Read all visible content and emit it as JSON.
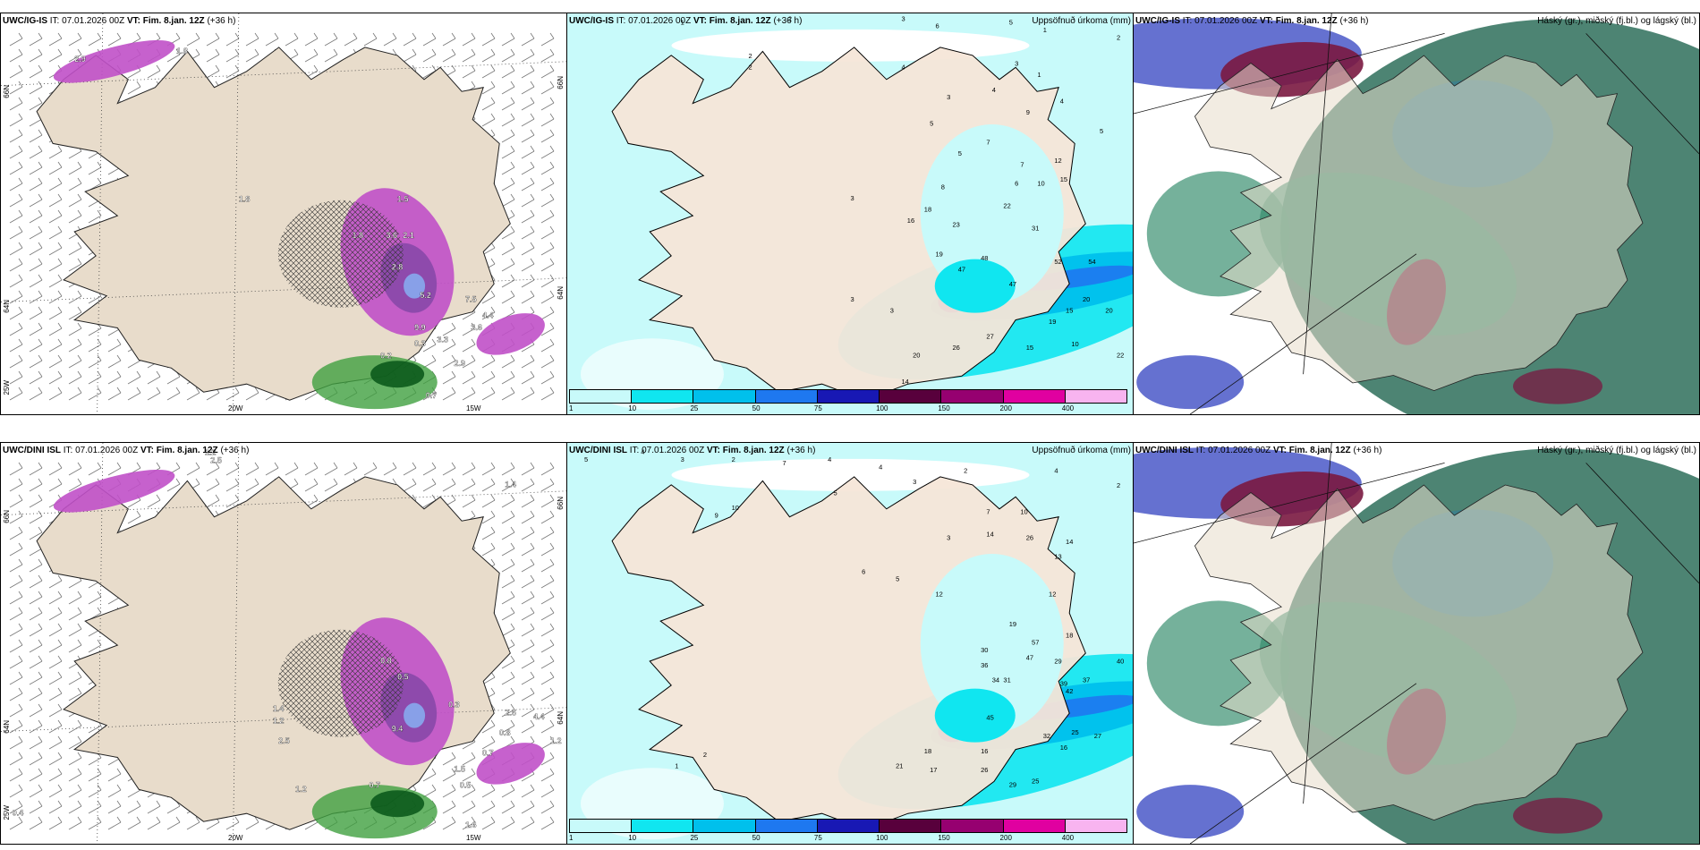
{
  "panels": {
    "p1": {
      "model": "UWC/IG-IS",
      "it": "IT: 07.01.2026 00Z",
      "vt_label": "VT:",
      "vt": "Fim. 8.jan. 12Z",
      "lead": "(+36 h)"
    },
    "p2": {
      "model": "UWC/IG-IS",
      "it": "IT: 07.01.2026 00Z",
      "vt_label": "VT:",
      "vt": "Fim. 8.jan. 12Z",
      "lead": "(+36 h)",
      "title_right": "Uppsöfnuð úrkoma (mm)"
    },
    "p3": {
      "model": "UWC/IG-IS",
      "it": "IT: 07.01.2026 00Z",
      "vt_label": "VT:",
      "vt": "Fim. 8.jan. 12Z",
      "lead": "(+36 h)",
      "title_right": "Háský (gr.), miðský (fj.bl.) og lágský (bl.)"
    },
    "p4": {
      "model": "UWC/DINI ISL",
      "it": "IT: 07.01.2026 00Z",
      "vt_label": "VT:",
      "vt": "Fim. 8.jan. 12Z",
      "lead": "(+36 h)"
    },
    "p5": {
      "model": "UWC/DINI ISL",
      "it": "IT: 07.01.2026 00Z",
      "vt_label": "VT:",
      "vt": "Fim. 8.jan. 12Z",
      "lead": "(+36 h)",
      "title_right": "Uppsöfnuð úrkoma (mm)"
    },
    "p6": {
      "model": "UWC/DINI ISL",
      "it": "IT: 07.01.2026 00Z",
      "vt_label": "VT:",
      "vt": "Fim. 8.jan. 12Z",
      "lead": "(+36 h)",
      "title_right": "Háský (gr.), miðský (fj.bl.) og lágský (bl.)"
    }
  },
  "coords": {
    "lat66": "66N",
    "lat64": "64N",
    "lon25": "25W",
    "lon20": "20W",
    "lon15": "15W"
  },
  "colorbar": {
    "labels": [
      "1",
      "10",
      "25",
      "50",
      "75",
      "100",
      "150",
      "200",
      "400"
    ],
    "colors": [
      "#c8fafa",
      "#10e6f0",
      "#00c0ec",
      "#1e78f0",
      "#1818b4",
      "#58003c",
      "#960070",
      "#e000a0",
      "#f8b4f0"
    ]
  },
  "precip_values_p2": [
    [
      "1",
      0.2,
      0.03
    ],
    [
      "2",
      0.39,
      0.02
    ],
    [
      "3",
      0.59,
      0.02
    ],
    [
      "6",
      0.65,
      0.04
    ],
    [
      "5",
      0.78,
      0.03
    ],
    [
      "1",
      0.84,
      0.05
    ],
    [
      "2",
      0.97,
      0.07
    ],
    [
      "2",
      0.32,
      0.12
    ],
    [
      "4",
      0.59,
      0.15
    ],
    [
      "4",
      0.75,
      0.21
    ],
    [
      "2",
      0.32,
      0.15
    ],
    [
      "5",
      0.64,
      0.3
    ],
    [
      "3",
      0.79,
      0.14
    ],
    [
      "1",
      0.83,
      0.17
    ],
    [
      "3",
      0.67,
      0.23
    ],
    [
      "7",
      0.74,
      0.35
    ],
    [
      "5",
      0.69,
      0.38
    ],
    [
      "4",
      0.87,
      0.24
    ],
    [
      "9",
      0.81,
      0.27
    ],
    [
      "5",
      0.94,
      0.32
    ],
    [
      "7",
      0.8,
      0.41
    ],
    [
      "12",
      0.86,
      0.4
    ],
    [
      "8",
      0.66,
      0.47
    ],
    [
      "6",
      0.79,
      0.46
    ],
    [
      "10",
      0.83,
      0.46
    ],
    [
      "15",
      0.87,
      0.45
    ],
    [
      "3",
      0.5,
      0.5
    ],
    [
      "16",
      0.6,
      0.56
    ],
    [
      "18",
      0.63,
      0.53
    ],
    [
      "23",
      0.68,
      0.57
    ],
    [
      "22",
      0.77,
      0.52
    ],
    [
      "31",
      0.82,
      0.58
    ],
    [
      "19",
      0.65,
      0.65
    ],
    [
      "48",
      0.73,
      0.66
    ],
    [
      "52",
      0.86,
      0.67
    ],
    [
      "54",
      0.92,
      0.67
    ],
    [
      "47",
      0.78,
      0.73
    ],
    [
      "47",
      0.69,
      0.69
    ],
    [
      "20",
      0.91,
      0.77
    ],
    [
      "15",
      0.88,
      0.8
    ],
    [
      "19",
      0.85,
      0.83
    ],
    [
      "20",
      0.95,
      0.8
    ],
    [
      "27",
      0.74,
      0.87
    ],
    [
      "26",
      0.68,
      0.9
    ],
    [
      "15",
      0.81,
      0.9
    ],
    [
      "10",
      0.89,
      0.89
    ],
    [
      "22",
      0.97,
      0.92
    ],
    [
      "20",
      0.61,
      0.92
    ],
    [
      "3",
      0.57,
      0.8
    ],
    [
      "3",
      0.5,
      0.77
    ],
    [
      "14",
      0.59,
      0.99
    ]
  ],
  "precip_values_p5": [
    [
      "5",
      0.03,
      0.05
    ],
    [
      "4",
      0.13,
      0.03
    ],
    [
      "3",
      0.2,
      0.05
    ],
    [
      "2",
      0.29,
      0.05
    ],
    [
      "7",
      0.38,
      0.06
    ],
    [
      "4",
      0.46,
      0.05
    ],
    [
      "4",
      0.55,
      0.07
    ],
    [
      "3",
      0.61,
      0.11
    ],
    [
      "2",
      0.7,
      0.08
    ],
    [
      "4",
      0.86,
      0.08
    ],
    [
      "2",
      0.97,
      0.12
    ],
    [
      "9",
      0.26,
      0.2
    ],
    [
      "10",
      0.29,
      0.18
    ],
    [
      "5",
      0.47,
      0.14
    ],
    [
      "6",
      0.52,
      0.35
    ],
    [
      "5",
      0.58,
      0.37
    ],
    [
      "12",
      0.65,
      0.41
    ],
    [
      "3",
      0.67,
      0.26
    ],
    [
      "7",
      0.74,
      0.19
    ],
    [
      "10",
      0.8,
      0.19
    ],
    [
      "14",
      0.74,
      0.25
    ],
    [
      "26",
      0.81,
      0.26
    ],
    [
      "14",
      0.88,
      0.27
    ],
    [
      "13",
      0.86,
      0.31
    ],
    [
      "12",
      0.85,
      0.41
    ],
    [
      "18",
      0.88,
      0.52
    ],
    [
      "19",
      0.78,
      0.49
    ],
    [
      "57",
      0.82,
      0.54
    ],
    [
      "47",
      0.81,
      0.58
    ],
    [
      "29",
      0.86,
      0.59
    ],
    [
      "40",
      0.97,
      0.59
    ],
    [
      "30",
      0.73,
      0.56
    ],
    [
      "34",
      0.75,
      0.64
    ],
    [
      "31",
      0.77,
      0.64
    ],
    [
      "36",
      0.73,
      0.6
    ],
    [
      "39",
      0.87,
      0.65
    ],
    [
      "37",
      0.91,
      0.64
    ],
    [
      "42",
      0.88,
      0.67
    ],
    [
      "45",
      0.74,
      0.74
    ],
    [
      "32",
      0.84,
      0.79
    ],
    [
      "25",
      0.89,
      0.78
    ],
    [
      "27",
      0.93,
      0.79
    ],
    [
      "16",
      0.87,
      0.82
    ],
    [
      "16",
      0.73,
      0.83
    ],
    [
      "26",
      0.73,
      0.88
    ],
    [
      "25",
      0.82,
      0.91
    ],
    [
      "29",
      0.78,
      0.92
    ],
    [
      "18",
      0.63,
      0.83
    ],
    [
      "21",
      0.58,
      0.87
    ],
    [
      "17",
      0.64,
      0.88
    ],
    [
      "2",
      0.24,
      0.84
    ],
    [
      "1",
      0.19,
      0.87
    ]
  ],
  "wind_values_p1": [
    [
      "2.9",
      0.13,
      0.12
    ],
    [
      "1.8",
      0.31,
      0.1
    ],
    [
      "1.5",
      0.7,
      0.47
    ],
    [
      "3.6",
      0.68,
      0.56
    ],
    [
      "2.1",
      0.71,
      0.56
    ],
    [
      "1.8",
      0.62,
      0.56
    ],
    [
      "2.8",
      0.69,
      0.64
    ],
    [
      "5.2",
      0.74,
      0.71
    ],
    [
      "7.5",
      0.82,
      0.72
    ],
    [
      "4.4",
      0.85,
      0.76
    ],
    [
      "3.6",
      0.83,
      0.79
    ],
    [
      "0.3",
      0.73,
      0.83
    ],
    [
      "3.3",
      0.77,
      0.82
    ],
    [
      "0.2",
      0.67,
      0.86
    ],
    [
      "2.9",
      0.8,
      0.88
    ],
    [
      "0.7",
      0.75,
      0.96
    ],
    [
      "1.8",
      0.42,
      0.47
    ],
    [
      "9.9",
      0.73,
      0.79
    ]
  ],
  "wind_values_p4": [
    [
      "1.2",
      0.36,
      0.03
    ],
    [
      "2.5",
      0.37,
      0.05
    ],
    [
      "1.4",
      0.48,
      0.67
    ],
    [
      "1.2",
      0.48,
      0.7
    ],
    [
      "2.5",
      0.49,
      0.75
    ],
    [
      "9.4",
      0.69,
      0.72
    ],
    [
      "0.8",
      0.67,
      0.55
    ],
    [
      "0.5",
      0.7,
      0.59
    ],
    [
      "0.3",
      0.79,
      0.66
    ],
    [
      "0.8",
      0.88,
      0.73
    ],
    [
      "0.7",
      0.85,
      0.78
    ],
    [
      "1.5",
      0.8,
      0.82
    ],
    [
      "0.5",
      0.81,
      0.86
    ],
    [
      "0.7",
      0.65,
      0.86
    ],
    [
      "1.6",
      0.82,
      0.96
    ],
    [
      "0.4",
      0.02,
      0.93
    ],
    [
      "1.2",
      0.52,
      0.87
    ],
    [
      "1.4",
      0.89,
      0.11
    ],
    [
      "4.4",
      0.94,
      0.69
    ],
    [
      "2.6",
      0.89,
      0.68
    ],
    [
      "1.2",
      0.97,
      0.75
    ]
  ]
}
